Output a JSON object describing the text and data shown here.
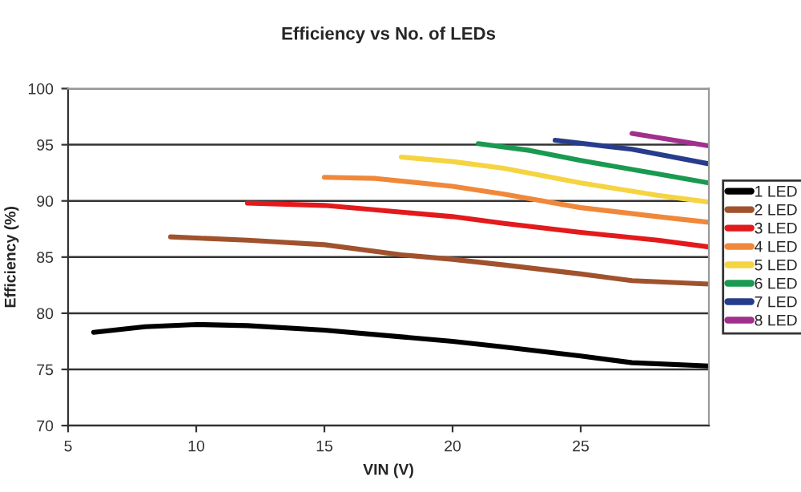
{
  "chart_data": {
    "type": "line",
    "title": "Efficiency vs No. of LEDs",
    "xlabel": "VIN (V)",
    "ylabel": "Efficiency (%)",
    "xlim": [
      5,
      30
    ],
    "xticks": [
      5,
      10,
      15,
      20,
      25
    ],
    "ylim": [
      70,
      100
    ],
    "yticks": [
      70,
      75,
      80,
      85,
      90,
      95,
      100
    ],
    "grid": "y",
    "legend": "right",
    "marker": "none",
    "line_style": "solid",
    "series": [
      {
        "name": "1 LED",
        "color": "#000000",
        "x": [
          6,
          8,
          10,
          12,
          15,
          18,
          20,
          22,
          25,
          27,
          30
        ],
        "values": [
          78.3,
          78.8,
          79.0,
          78.9,
          78.5,
          77.9,
          77.5,
          77.0,
          76.2,
          75.6,
          75.3
        ]
      },
      {
        "name": "2 LED",
        "color": "#a0522d",
        "x": [
          9,
          12,
          15,
          18,
          20,
          22,
          25,
          27,
          30
        ],
        "values": [
          86.8,
          86.5,
          86.1,
          85.2,
          84.8,
          84.3,
          83.5,
          82.9,
          82.6
        ]
      },
      {
        "name": "3 LED",
        "color": "#e31a1c",
        "x": [
          12,
          15,
          18,
          20,
          22,
          25,
          28,
          30
        ],
        "values": [
          89.8,
          89.6,
          89.0,
          88.6,
          88.0,
          87.2,
          86.5,
          85.9
        ]
      },
      {
        "name": "4 LED",
        "color": "#f0883a",
        "x": [
          15,
          17,
          20,
          22,
          25,
          28,
          30
        ],
        "values": [
          92.1,
          92.0,
          91.3,
          90.6,
          89.4,
          88.6,
          88.1
        ]
      },
      {
        "name": "5 LED",
        "color": "#f5d442",
        "x": [
          18,
          20,
          22,
          25,
          28,
          30
        ],
        "values": [
          93.9,
          93.5,
          92.9,
          91.6,
          90.5,
          89.9
        ]
      },
      {
        "name": "6 LED",
        "color": "#1a9a50",
        "x": [
          21,
          23,
          25,
          28,
          30
        ],
        "values": [
          95.1,
          94.5,
          93.6,
          92.4,
          91.6
        ]
      },
      {
        "name": "7 LED",
        "color": "#283c8c",
        "x": [
          24,
          27,
          30
        ],
        "values": [
          95.4,
          94.6,
          93.3
        ]
      },
      {
        "name": "8 LED",
        "color": "#a0308c",
        "x": [
          27,
          30
        ],
        "values": [
          96.0,
          94.9
        ]
      }
    ]
  }
}
